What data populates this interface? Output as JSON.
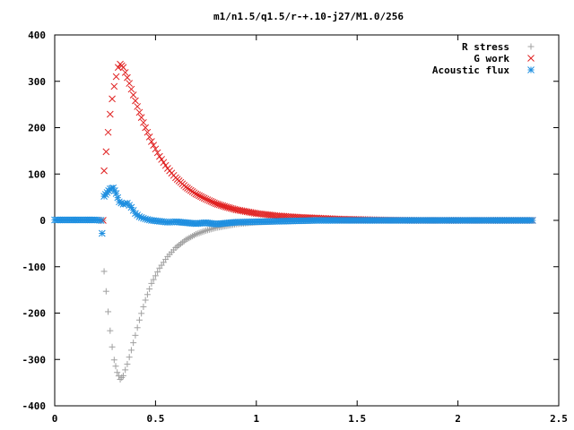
{
  "chart_data": {
    "type": "scatter",
    "title": "m1/n1.5/q1.5/r-+.10-j27/M1.0/256",
    "xlabel": "",
    "ylabel": "",
    "xlim": [
      0,
      2.5
    ],
    "ylim": [
      -400,
      400
    ],
    "x_ticks": [
      0,
      0.5,
      1,
      1.5,
      2,
      2.5
    ],
    "x_tick_labels": [
      "0",
      "0.5",
      "1",
      "1.5",
      "2",
      "2.5"
    ],
    "y_ticks": [
      -400,
      -300,
      -200,
      -100,
      0,
      100,
      200,
      300,
      400
    ],
    "y_tick_labels": [
      "-400",
      "-300",
      "-200",
      "-100",
      "0",
      "100",
      "200",
      "300",
      "400"
    ],
    "grid": false,
    "legend_position": "top-right",
    "series": [
      {
        "name": "R stress",
        "marker": "plus",
        "color": "#a0a0a0",
        "x": [
          0.24,
          0.245,
          0.255,
          0.265,
          0.275,
          0.285,
          0.295,
          0.31,
          0.325,
          0.34,
          0.36,
          0.38,
          0.4,
          0.42,
          0.45,
          0.48,
          0.52,
          0.56,
          0.6,
          0.65,
          0.7,
          0.75,
          0.8,
          0.85,
          0.9,
          1.0,
          1.1,
          1.2,
          1.3,
          1.4,
          1.5,
          1.6,
          1.8,
          2.0,
          2.2,
          2.37
        ],
        "y": [
          0,
          -110,
          -153,
          -197,
          -238,
          -273,
          -301,
          -328,
          -343,
          -335,
          -310,
          -280,
          -248,
          -215,
          -172,
          -136,
          -103,
          -78,
          -59,
          -42,
          -30,
          -22,
          -16,
          -12,
          -8,
          -4,
          -2,
          -1,
          0,
          0,
          0,
          0,
          0,
          0,
          0,
          0
        ]
      },
      {
        "name": "G work",
        "marker": "cross",
        "color": "#e02020",
        "x": [
          0.24,
          0.245,
          0.255,
          0.265,
          0.275,
          0.285,
          0.295,
          0.305,
          0.315,
          0.325,
          0.34,
          0.36,
          0.38,
          0.4,
          0.42,
          0.45,
          0.48,
          0.52,
          0.56,
          0.6,
          0.65,
          0.7,
          0.75,
          0.8,
          0.85,
          0.9,
          1.0,
          1.1,
          1.2,
          1.3,
          1.4,
          1.5,
          1.6,
          1.8,
          2.0,
          2.2,
          2.37
        ],
        "y": [
          0,
          107,
          148,
          190,
          229,
          262,
          289,
          310,
          330,
          337,
          330,
          308,
          283,
          258,
          233,
          200,
          170,
          138,
          112,
          92,
          72,
          57,
          46,
          36,
          29,
          23,
          15,
          10,
          7,
          5,
          3,
          2,
          1,
          0,
          0,
          0,
          0
        ]
      },
      {
        "name": "Acoustic flux",
        "marker": "star",
        "color": "#1f8fe0",
        "x": [
          0.0,
          0.05,
          0.1,
          0.15,
          0.2,
          0.23,
          0.235,
          0.245,
          0.26,
          0.275,
          0.29,
          0.305,
          0.32,
          0.34,
          0.36,
          0.38,
          0.4,
          0.42,
          0.45,
          0.48,
          0.52,
          0.56,
          0.6,
          0.65,
          0.7,
          0.75,
          0.8,
          0.85,
          0.9,
          1.0,
          1.1,
          1.2,
          1.3,
          1.4,
          1.5,
          1.6,
          1.8,
          2.0,
          2.2,
          2.37
        ],
        "y": [
          1,
          1,
          1,
          1,
          1,
          0,
          -28,
          52,
          60,
          68,
          70,
          58,
          40,
          35,
          37,
          28,
          15,
          8,
          3,
          0,
          -2,
          -4,
          -3,
          -5,
          -7,
          -5,
          -8,
          -6,
          -4,
          -3,
          -2,
          -1,
          0,
          0,
          0,
          0,
          0,
          0,
          0,
          0
        ]
      }
    ]
  }
}
